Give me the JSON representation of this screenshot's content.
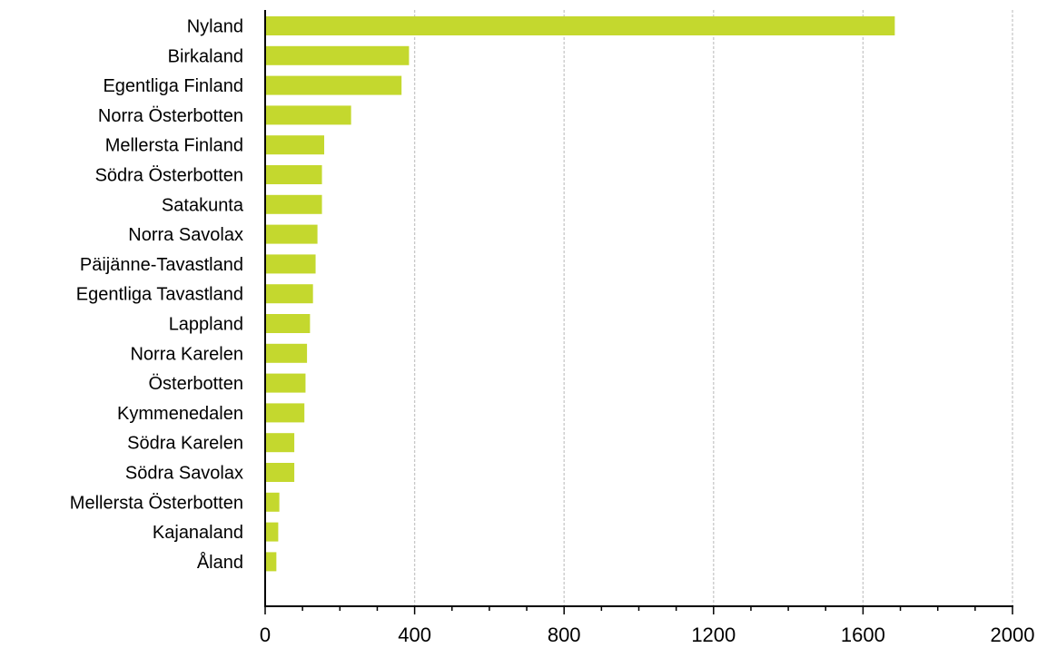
{
  "chart_data": {
    "type": "bar",
    "orientation": "horizontal",
    "categories": [
      "Nyland",
      "Birkaland",
      "Egentliga Finland",
      "Norra Österbotten",
      "Mellersta Finland",
      "Södra Österbotten",
      "Satakunta",
      "Norra Savolax",
      "Päijänne-Tavastland",
      "Egentliga Tavastland",
      "Lappland",
      "Norra Karelen",
      "Österbotten",
      "Kymmenedalen",
      "Södra Karelen",
      "Södra Savolax",
      "Mellersta Österbotten",
      "Kajanaland",
      "Åland"
    ],
    "values": [
      1685,
      385,
      365,
      230,
      158,
      152,
      152,
      140,
      135,
      128,
      120,
      112,
      108,
      105,
      78,
      78,
      38,
      35,
      30
    ],
    "title": "",
    "xlabel": "",
    "ylabel": "",
    "xlim": [
      0,
      2000
    ],
    "xticks": [
      "0",
      "400",
      "800",
      "1200",
      "1600",
      "2000"
    ],
    "grid": "vertical dashed",
    "legend": "none",
    "bar_color": "#c4d82e",
    "grid_color": "#c8c8c8",
    "axis_color": "#000000"
  }
}
